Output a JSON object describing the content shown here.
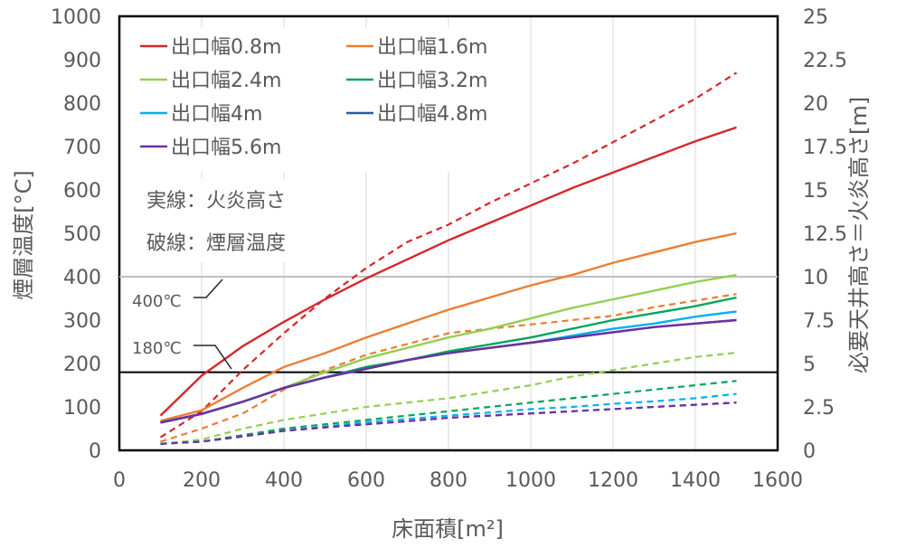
{
  "chart_data": {
    "type": "line",
    "xlabel": "床面積[m²]",
    "ylabel_left": "煙層温度[°C]",
    "ylabel_right": "必要天井高さ＝火炎高さ[m]",
    "xlim": [
      0,
      1600
    ],
    "ylim_left": [
      0,
      1000
    ],
    "ylim_right": [
      0,
      25
    ],
    "x_ticks": [
      "0",
      "200",
      "400",
      "600",
      "800",
      "1000",
      "1200",
      "1400",
      "1600"
    ],
    "y_ticks_left": [
      "0",
      "100",
      "200",
      "300",
      "400",
      "500",
      "600",
      "700",
      "800",
      "900",
      "1000"
    ],
    "y_ticks_right": [
      "0",
      "2.5",
      "5",
      "7.5",
      "10",
      "12.5",
      "15",
      "17.5",
      "20",
      "22.5",
      "25"
    ],
    "grid": "vertical",
    "legend_position": "top-left",
    "annotations": {
      "solid_note": "実線：火炎高さ",
      "dashed_note": "破線：煙層温度",
      "ref_400": "400℃",
      "ref_180": "180℃"
    },
    "reference_lines": [
      {
        "y": 400,
        "color": "#bfbfbf"
      },
      {
        "y": 180,
        "color": "#000000"
      }
    ],
    "x": [
      100,
      200,
      300,
      400,
      500,
      600,
      700,
      800,
      900,
      1000,
      1100,
      1200,
      1300,
      1400,
      1500
    ],
    "series": [
      {
        "name": "出口幅0.8m",
        "color": "#d62728",
        "solid_right_axis": [
          2.0,
          4.3,
          6.0,
          7.4,
          8.7,
          9.9,
          11.0,
          12.1,
          13.1,
          14.1,
          15.1,
          16.0,
          16.9,
          17.8,
          18.6
        ],
        "dashed_left_axis": [
          30,
          90,
          185,
          270,
          350,
          420,
          480,
          520,
          570,
          615,
          660,
          710,
          760,
          810,
          870
        ]
      },
      {
        "name": "出口幅1.6m",
        "color": "#ed7d31",
        "solid_right_axis": [
          1.7,
          2.3,
          3.6,
          4.8,
          5.6,
          6.5,
          7.3,
          8.1,
          8.8,
          9.5,
          10.1,
          10.8,
          11.4,
          12.0,
          12.5
        ],
        "dashed_left_axis": [
          20,
          50,
          85,
          140,
          185,
          220,
          245,
          270,
          280,
          290,
          300,
          310,
          330,
          345,
          360
        ]
      },
      {
        "name": "出口幅2.4m",
        "color": "#92d050",
        "solid_right_axis": [
          1.6,
          2.1,
          2.8,
          3.6,
          4.5,
          5.3,
          5.9,
          6.5,
          7.0,
          7.6,
          8.2,
          8.7,
          9.2,
          9.7,
          10.1
        ],
        "dashed_left_axis": [
          15,
          25,
          50,
          70,
          85,
          100,
          110,
          120,
          135,
          150,
          170,
          185,
          200,
          215,
          225
        ]
      },
      {
        "name": "出口幅3.2m",
        "color": "#00a65a",
        "solid_right_axis": [
          1.6,
          2.1,
          2.8,
          3.6,
          4.2,
          4.8,
          5.2,
          5.7,
          6.1,
          6.5,
          7.0,
          7.5,
          7.9,
          8.3,
          8.8
        ],
        "dashed_left_axis": [
          15,
          20,
          35,
          50,
          60,
          70,
          80,
          90,
          100,
          110,
          120,
          130,
          140,
          150,
          160
        ]
      },
      {
        "name": "出口幅4m",
        "color": "#00b0f0",
        "solid_right_axis": [
          1.6,
          2.1,
          2.8,
          3.6,
          4.2,
          4.7,
          5.2,
          5.6,
          5.9,
          6.2,
          6.6,
          7.0,
          7.3,
          7.7,
          8.0
        ],
        "dashed_left_axis": [
          15,
          20,
          32,
          45,
          55,
          65,
          72,
          80,
          87,
          95,
          100,
          107,
          113,
          120,
          130
        ]
      },
      {
        "name": "出口幅4.8m",
        "color": "#1f5fa0",
        "solid_right_axis": [
          1.6,
          2.1,
          2.8,
          3.6,
          4.2,
          4.7,
          5.2,
          5.6,
          5.9,
          6.2,
          6.5,
          6.8,
          7.1,
          7.3,
          7.5
        ],
        "dashed_left_axis": [
          15,
          20,
          32,
          45,
          53,
          60,
          67,
          75,
          80,
          85,
          90,
          95,
          100,
          105,
          110
        ]
      },
      {
        "name": "出口幅5.6m",
        "color": "#7030a0",
        "solid_right_axis": [
          1.6,
          2.1,
          2.8,
          3.6,
          4.2,
          4.7,
          5.2,
          5.6,
          5.9,
          6.2,
          6.5,
          6.8,
          7.1,
          7.3,
          7.5
        ],
        "dashed_left_axis": [
          15,
          20,
          32,
          45,
          53,
          60,
          67,
          75,
          80,
          85,
          90,
          95,
          100,
          105,
          110
        ]
      }
    ]
  }
}
